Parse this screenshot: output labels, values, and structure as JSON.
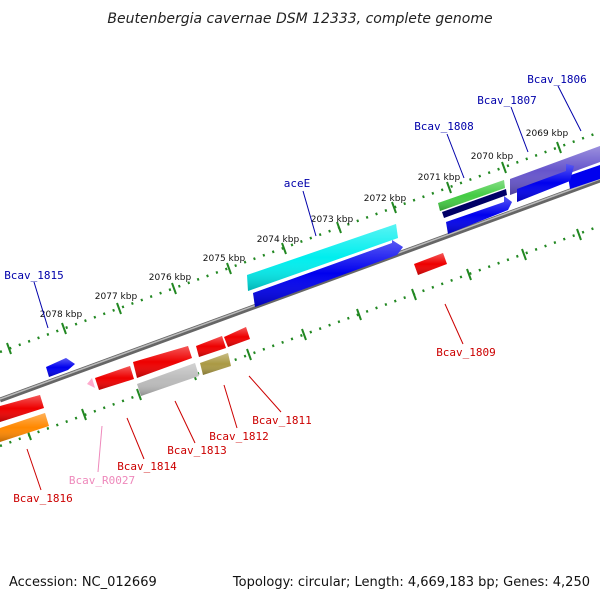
{
  "title": "Beutenbergia cavernae DSM 12333, complete genome",
  "footer": {
    "accession": "Accession: NC_012669",
    "summary": "Topology: circular; Length: 4,669,183 bp; Genes: 4,250"
  },
  "ruler": {
    "labels": [
      "2069 kbp",
      "2070 kbp",
      "2071 kbp",
      "2072 kbp",
      "2073 kbp",
      "2074 kbp",
      "2075 kbp",
      "2076 kbp",
      "2077 kbp",
      "2078 kbp"
    ]
  },
  "genes": {
    "bcav_1806": "Bcav_1806",
    "bcav_1807": "Bcav_1807",
    "bcav_1808": "Bcav_1808",
    "acee": "aceE",
    "bcav_1815": "Bcav_1815",
    "bcav_1809": "Bcav_1809",
    "bcav_1811": "Bcav_1811",
    "bcav_1812": "Bcav_1812",
    "bcav_1813": "Bcav_1813",
    "bcav_1814": "Bcav_1814",
    "bcav_r0027": "Bcav_R0027",
    "bcav_1816": "Bcav_1816"
  },
  "colors": {
    "label_top": "#0000aa",
    "label_bottom": "#cc0000",
    "label_rna": "#ee88bb",
    "tick": "#228822",
    "backbone": "#888888",
    "cds_forward": "#0000ee",
    "cds_reverse": "#ee0000",
    "acee": "#00eeee",
    "slate": "#6655cc",
    "green": "#44cc44",
    "navy": "#000066",
    "grey": "#bbbbbb",
    "olive": "#aa9944",
    "orange": "#ff8800",
    "pink": "#ffaacc"
  }
}
